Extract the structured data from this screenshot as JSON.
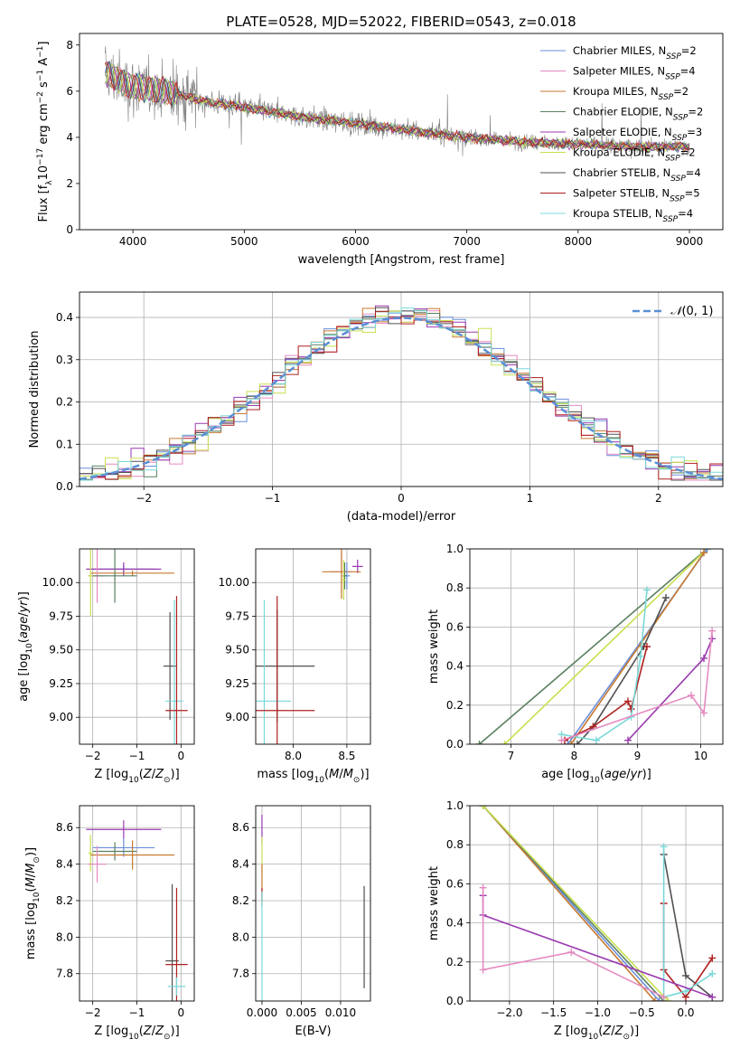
{
  "figure_title": "PLATE=0528, MJD=52022, FIBERID=0543, z=0.018",
  "colors": {
    "chabrier_miles": "#6a8fdc",
    "salpeter_miles": "#e58ac0",
    "kroupa_miles": "#c87a30",
    "chabrier_elodie": "#5a8060",
    "salpeter_elodie": "#9a3ab0",
    "kroupa_elodie": "#c8e050",
    "chabrier_stelib": "#505050",
    "salpeter_stelib": "#b02020",
    "kroupa_stelib": "#7ad8d8",
    "data": "#808080",
    "normal": "#5b8fd6"
  },
  "legend": [
    {
      "key": "chabrier_miles",
      "label": "Chabrier MILES, N",
      "sub": "SSP",
      "val": "=2"
    },
    {
      "key": "salpeter_miles",
      "label": "Salpeter MILES, N",
      "sub": "SSP",
      "val": "=4"
    },
    {
      "key": "kroupa_miles",
      "label": "Kroupa MILES, N",
      "sub": "SSP",
      "val": "=2"
    },
    {
      "key": "chabrier_elodie",
      "label": "Chabrier ELODIE, N",
      "sub": "SSP",
      "val": "=2"
    },
    {
      "key": "salpeter_elodie",
      "label": "Salpeter ELODIE, N",
      "sub": "SSP",
      "val": "=3"
    },
    {
      "key": "kroupa_elodie",
      "label": "Kroupa ELODIE, N",
      "sub": "SSP",
      "val": "=2"
    },
    {
      "key": "chabrier_stelib",
      "label": "Chabrier STELIB, N",
      "sub": "SSP",
      "val": "=4"
    },
    {
      "key": "salpeter_stelib",
      "label": "Salpeter STELIB, N",
      "sub": "SSP",
      "val": "=5"
    },
    {
      "key": "kroupa_stelib",
      "label": "Kroupa STELIB, N",
      "sub": "SSP",
      "val": "=4"
    }
  ],
  "chart_data": [
    {
      "id": "spectrum",
      "type": "line",
      "xlabel": "wavelength [Angstrom, rest frame]",
      "ylabel": "Flux [f_λ 10^-17 erg cm^-2 s^-1 A^-1]",
      "xlim": [
        3520,
        9300
      ],
      "ylim": [
        0,
        8.5
      ],
      "xticks": [
        4000,
        5000,
        6000,
        7000,
        8000,
        9000
      ],
      "yticks": [
        0,
        2,
        4,
        6,
        8
      ],
      "continuum": [
        [
          3750,
          6.8
        ],
        [
          3900,
          6.4
        ],
        [
          4000,
          6.2
        ],
        [
          4300,
          6.0
        ],
        [
          4600,
          5.6
        ],
        [
          5000,
          5.3
        ],
        [
          5500,
          4.9
        ],
        [
          6000,
          4.6
        ],
        [
          6500,
          4.3
        ],
        [
          7000,
          4.0
        ],
        [
          7500,
          3.8
        ],
        [
          8000,
          3.7
        ],
        [
          8500,
          3.6
        ],
        [
          9000,
          3.6
        ]
      ],
      "data_range": [
        3750,
        9000
      ],
      "model_range": [
        3750,
        9000
      ]
    },
    {
      "id": "residuals",
      "type": "line",
      "xlabel": "(data-model)/error",
      "ylabel": "Normed distribution",
      "xlim": [
        -2.5,
        2.5
      ],
      "ylim": [
        0,
        0.46
      ],
      "xticks": [
        -2,
        -1,
        0,
        1,
        2
      ],
      "yticks": [
        0,
        0.1,
        0.2,
        0.3,
        0.4
      ],
      "legend": "N(0,1)",
      "hist_bin_width": 0.1
    },
    {
      "id": "age_vs_Z",
      "type": "scatter",
      "xlabel": "Z [log10(Z/Z⊙)]",
      "ylabel": "age [log10(age/yr)]",
      "xlim": [
        -2.3,
        0.3
      ],
      "ylim": [
        8.8,
        10.25
      ],
      "xticks": [
        -2,
        -1,
        0
      ],
      "yticks": [
        9.0,
        9.25,
        9.5,
        9.75,
        10.0
      ],
      "points": [
        {
          "s": "chabrier_miles",
          "x": -1.3,
          "y": 10.1,
          "xe": 0.7,
          "ye": 0.03
        },
        {
          "s": "salpeter_elodie",
          "x": -1.3,
          "y": 10.1,
          "xe": 0.85,
          "ye": 0.05
        },
        {
          "s": "kroupa_miles",
          "x": -1.1,
          "y": 10.07,
          "xe": 0.95,
          "ye": 0.02
        },
        {
          "s": "salpeter_miles",
          "x": -1.9,
          "y": 10.05,
          "xe": 0.2,
          "ye": 0.2
        },
        {
          "s": "kroupa_elodie",
          "x": -2.05,
          "y": 10.05,
          "xe": 0.05,
          "ye": 0.3
        },
        {
          "s": "chabrier_elodie",
          "x": -1.5,
          "y": 10.05,
          "xe": 0.5,
          "ye": 0.2
        },
        {
          "s": "chabrier_stelib",
          "x": -0.25,
          "y": 9.38,
          "xe": 0.15,
          "ye": 0.4
        },
        {
          "s": "kroupa_stelib",
          "x": -0.15,
          "y": 9.12,
          "xe": 0.2,
          "ye": 0.75
        },
        {
          "s": "salpeter_stelib",
          "x": -0.1,
          "y": 9.05,
          "xe": 0.25,
          "ye": 0.85
        }
      ]
    },
    {
      "id": "age_vs_mass",
      "type": "scatter",
      "xlabel": "mass [log10(M/M⊙)]",
      "ylabel": "",
      "xlim": [
        7.65,
        8.72
      ],
      "ylim": [
        8.8,
        10.25
      ],
      "xticks": [
        8.0,
        8.5
      ],
      "yticks": [
        9.0,
        9.25,
        9.5,
        9.75,
        10.0
      ],
      "points": [
        {
          "s": "salpeter_elodie",
          "x": 8.6,
          "y": 10.12,
          "xe": 0.05,
          "ye": 0.05
        },
        {
          "s": "salpeter_miles",
          "x": 8.45,
          "y": 10.08,
          "xe": 0.1,
          "ye": 0.15
        },
        {
          "s": "kroupa_miles",
          "x": 8.45,
          "y": 10.08,
          "xe": 0.18,
          "ye": 0.2
        },
        {
          "s": "chabrier_miles",
          "x": 8.5,
          "y": 10.05,
          "xe": 0.03,
          "ye": 0.1
        },
        {
          "s": "chabrier_elodie",
          "x": 8.48,
          "y": 10.05,
          "xe": 0.02,
          "ye": 0.1
        },
        {
          "s": "kroupa_elodie",
          "x": 8.47,
          "y": 10.02,
          "xe": 0.02,
          "ye": 0.15
        },
        {
          "s": "chabrier_stelib",
          "x": 7.85,
          "y": 9.38,
          "xe": 0.35,
          "ye": 0.42
        },
        {
          "s": "kroupa_stelib",
          "x": 7.73,
          "y": 9.12,
          "xe": 0.25,
          "ye": 0.75
        },
        {
          "s": "salpeter_stelib",
          "x": 7.85,
          "y": 9.05,
          "xe": 0.35,
          "ye": 0.85
        }
      ]
    },
    {
      "id": "weight_vs_age",
      "type": "line",
      "xlabel": "age [log10(age/yr)]",
      "ylabel": "mass weight",
      "xlim": [
        6.35,
        10.35
      ],
      "ylim": [
        0,
        1
      ],
      "xticks": [
        7,
        8,
        9,
        10
      ],
      "yticks": [
        0,
        0.2,
        0.4,
        0.6,
        0.8,
        1.0
      ],
      "series": [
        {
          "s": "chabrier_elodie",
          "pts": [
            [
              6.5,
              0
            ],
            [
              10.1,
              1.0
            ]
          ]
        },
        {
          "s": "kroupa_elodie",
          "pts": [
            [
              6.9,
              0
            ],
            [
              10.1,
              1.0
            ]
          ]
        },
        {
          "s": "chabrier_miles",
          "pts": [
            [
              7.9,
              0
            ],
            [
              10.1,
              1.0
            ]
          ]
        },
        {
          "s": "kroupa_miles",
          "pts": [
            [
              7.95,
              0
            ],
            [
              10.05,
              0.98
            ]
          ]
        },
        {
          "s": "chabrier_stelib",
          "pts": [
            [
              8.05,
              0.0
            ],
            [
              8.3,
              0.09
            ],
            [
              9.1,
              0.5
            ],
            [
              9.45,
              0.75
            ]
          ]
        },
        {
          "s": "salpeter_stelib",
          "pts": [
            [
              7.85,
              0.02
            ],
            [
              8.3,
              0.09
            ],
            [
              8.85,
              0.22
            ],
            [
              8.9,
              0.18
            ],
            [
              9.15,
              0.5
            ]
          ]
        },
        {
          "s": "kroupa_stelib",
          "pts": [
            [
              7.8,
              0.05
            ],
            [
              8.35,
              0.02
            ],
            [
              8.9,
              0.14
            ],
            [
              9.05,
              0.45
            ],
            [
              9.15,
              0.79
            ]
          ]
        },
        {
          "s": "salpeter_elodie",
          "pts": [
            [
              8.85,
              0.02
            ],
            [
              10.05,
              0.44
            ],
            [
              10.18,
              0.54
            ]
          ]
        },
        {
          "s": "salpeter_miles",
          "pts": [
            [
              7.8,
              0.02
            ],
            [
              9.85,
              0.25
            ],
            [
              10.05,
              0.16
            ],
            [
              10.18,
              0.58
            ]
          ]
        }
      ]
    },
    {
      "id": "mass_vs_Z",
      "type": "scatter",
      "xlabel": "Z [log10(Z/Z⊙)]",
      "ylabel": "mass [log10(M/M⊙)]",
      "xlim": [
        -2.3,
        0.3
      ],
      "ylim": [
        7.65,
        8.72
      ],
      "xticks": [
        -2,
        -1,
        0
      ],
      "yticks": [
        7.8,
        8.0,
        8.2,
        8.4,
        8.6
      ],
      "points": [
        {
          "s": "salpeter_elodie",
          "x": -1.3,
          "y": 8.59,
          "xe": 0.85,
          "ye": 0.05
        },
        {
          "s": "chabrier_miles",
          "x": -1.3,
          "y": 8.49,
          "xe": 0.7,
          "ye": 0.05
        },
        {
          "s": "chabrier_elodie",
          "x": -1.5,
          "y": 8.47,
          "xe": 0.5,
          "ye": 0.05
        },
        {
          "s": "kroupa_elodie",
          "x": -2.05,
          "y": 8.46,
          "xe": 0.05,
          "ye": 0.1
        },
        {
          "s": "kroupa_miles",
          "x": -1.1,
          "y": 8.45,
          "xe": 0.95,
          "ye": 0.08
        },
        {
          "s": "salpeter_miles",
          "x": -1.9,
          "y": 8.4,
          "xe": 0.2,
          "ye": 0.1
        },
        {
          "s": "chabrier_stelib",
          "x": -0.2,
          "y": 7.87,
          "xe": 0.15,
          "ye": 0.42
        },
        {
          "s": "salpeter_stelib",
          "x": -0.1,
          "y": 7.85,
          "xe": 0.25,
          "ye": 0.42
        },
        {
          "s": "kroupa_stelib",
          "x": -0.1,
          "y": 7.73,
          "xe": 0.2,
          "ye": 0.05
        }
      ]
    },
    {
      "id": "mass_vs_ebv",
      "type": "scatter",
      "xlabel": "E(B-V)",
      "ylabel": "",
      "xlim": [
        -0.0008,
        0.0138
      ],
      "ylim": [
        7.65,
        8.72
      ],
      "xticks": [
        0.0,
        0.005,
        0.01
      ],
      "yticks": [
        7.8,
        8.0,
        8.2,
        8.4,
        8.6
      ],
      "points": [
        {
          "s": "salpeter_elodie",
          "x": 0.0,
          "y": 8.59,
          "xe": 0,
          "ye": 0.08
        },
        {
          "s": "kroupa_elodie",
          "x": 0.0,
          "y": 8.45,
          "xe": 0,
          "ye": 0.1
        },
        {
          "s": "kroupa_miles",
          "x": 0.0,
          "y": 8.3,
          "xe": 0,
          "ye": 0.1
        },
        {
          "s": "salpeter_stelib",
          "x": 0.0,
          "y": 8.22,
          "xe": 0,
          "ye": 0.05
        },
        {
          "s": "kroupa_stelib",
          "x": 0.0,
          "y": 7.95,
          "xe": 0,
          "ye": 0.3
        },
        {
          "s": "chabrier_stelib",
          "x": 0.013,
          "y": 8.0,
          "xe": 0,
          "ye": 0.28
        }
      ]
    },
    {
      "id": "weight_vs_Z",
      "type": "line",
      "xlabel": "Z [log10(Z/Z⊙)]",
      "ylabel": "mass weight",
      "xlim": [
        -2.45,
        0.42
      ],
      "ylim": [
        0,
        1
      ],
      "xticks": [
        -2.0,
        -1.5,
        -1.0,
        -0.5,
        0.0
      ],
      "yticks": [
        0,
        0.2,
        0.4,
        0.6,
        0.8,
        1.0
      ],
      "series": [
        {
          "s": "chabrier_miles",
          "pts": [
            [
              -2.3,
              1.0
            ],
            [
              -0.3,
              0.0
            ]
          ]
        },
        {
          "s": "kroupa_miles",
          "pts": [
            [
              -2.3,
              1.0
            ],
            [
              -0.35,
              0.0
            ]
          ]
        },
        {
          "s": "chabrier_elodie",
          "pts": [
            [
              -2.3,
              1.0
            ],
            [
              -0.25,
              0.0
            ]
          ]
        },
        {
          "s": "kroupa_elodie",
          "pts": [
            [
              -2.3,
              1.0
            ],
            [
              -0.2,
              0.0
            ]
          ]
        },
        {
          "s": "chabrier_stelib",
          "pts": [
            [
              -0.25,
              0.75
            ],
            [
              0.0,
              0.13
            ],
            [
              0.3,
              0.02
            ]
          ]
        },
        {
          "s": "salpeter_stelib",
          "pts": [
            [
              -0.25,
              0.5
            ],
            [
              -0.25,
              0.16
            ],
            [
              0.0,
              0.02
            ],
            [
              0.3,
              0.22
            ]
          ]
        },
        {
          "s": "kroupa_stelib",
          "pts": [
            [
              -0.25,
              0.79
            ],
            [
              -0.25,
              0.02
            ],
            [
              0.0,
              0.05
            ],
            [
              0.3,
              0.14
            ]
          ]
        },
        {
          "s": "salpeter_elodie",
          "pts": [
            [
              -2.3,
              0.54
            ],
            [
              -2.3,
              0.44
            ],
            [
              0.3,
              0.02
            ]
          ]
        },
        {
          "s": "salpeter_miles",
          "pts": [
            [
              -2.3,
              0.58
            ],
            [
              -2.3,
              0.16
            ],
            [
              -1.3,
              0.25
            ],
            [
              -0.25,
              0.02
            ]
          ]
        }
      ]
    }
  ]
}
